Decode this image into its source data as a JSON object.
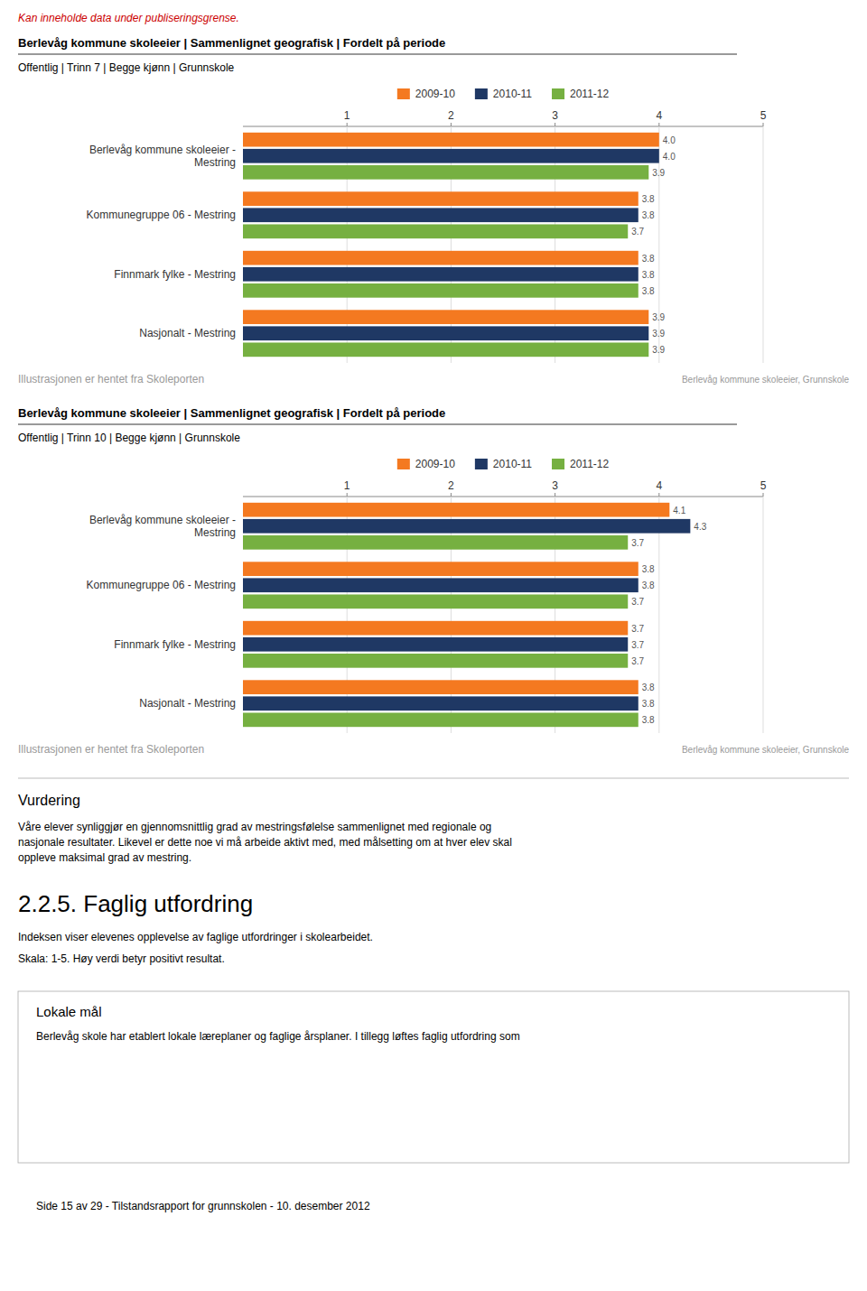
{
  "chart_data": [
    {
      "type": "bar",
      "orientation": "horizontal",
      "title": "Berlevåg kommune skoleeier | Sammenlignet geografisk | Fordelt på periode",
      "subtitle": "Offentlig | Trinn 7 | Begge kjønn | Grunnskole",
      "categories": [
        "Berlevåg kommune skoleeier -\nMestring",
        "Kommunegruppe 06 - Mestring",
        "Finnmark fylke - Mestring",
        "Nasjonalt - Mestring"
      ],
      "series": [
        {
          "name": "2009-10",
          "color": "#F47920",
          "values": [
            4.0,
            3.8,
            3.8,
            3.9
          ],
          "value_labels": [
            "4.0",
            "3.8",
            "3.8",
            "3.9"
          ]
        },
        {
          "name": "2010-11",
          "color": "#1F3864",
          "values": [
            4.0,
            3.8,
            3.8,
            3.9
          ],
          "value_labels": [
            "4.0",
            "3.8",
            "3.8",
            "3.9"
          ]
        },
        {
          "name": "2011-12",
          "color": "#76B041",
          "values": [
            3.9,
            3.7,
            3.8,
            3.9
          ],
          "value_labels": [
            "3.9",
            "3.7",
            "3.8",
            "3.9"
          ]
        }
      ],
      "xlim": [
        0,
        5
      ],
      "xticks": [
        1,
        2,
        3,
        4,
        5
      ],
      "grid": true,
      "data_labels": true,
      "legend": "top",
      "annotations": [
        "Berlevåg kommune skoleeier, Grunnskole",
        "Illustrasjonen er hentet fra Skoleporten"
      ]
    },
    {
      "type": "bar",
      "orientation": "horizontal",
      "title": "Berlevåg kommune skoleeier | Sammenlignet geografisk | Fordelt på periode",
      "subtitle": "Offentlig | Trinn 10 | Begge kjønn | Grunnskole",
      "categories": [
        "Berlevåg kommune skoleeier -\nMestring",
        "Kommunegruppe 06 - Mestring",
        "Finnmark fylke - Mestring",
        "Nasjonalt - Mestring"
      ],
      "series": [
        {
          "name": "2009-10",
          "color": "#F47920",
          "values": [
            4.1,
            3.8,
            3.7,
            3.8
          ],
          "value_labels": [
            "4.1",
            "3.8",
            "3.7",
            "3.8"
          ]
        },
        {
          "name": "2010-11",
          "color": "#1F3864",
          "values": [
            4.3,
            3.8,
            3.7,
            3.8
          ],
          "value_labels": [
            "4.3",
            "3.8",
            "3.7",
            "3.8"
          ]
        },
        {
          "name": "2011-12",
          "color": "#76B041",
          "values": [
            3.7,
            3.7,
            3.7,
            3.8
          ],
          "value_labels": [
            "3.7",
            "3.7",
            "3.7",
            "3.8"
          ]
        }
      ],
      "xlim": [
        0,
        5
      ],
      "xticks": [
        1,
        2,
        3,
        4,
        5
      ],
      "grid": true,
      "data_labels": true,
      "legend": "top",
      "annotations": [
        "Berlevåg kommune skoleeier, Grunnskole",
        "Illustrasjonen er hentet fra Skoleporten"
      ]
    }
  ],
  "annotations": [
    {
      "text": "Kan inneholde data under publiseringsgrense.",
      "color": "#CC0000"
    },
    {
      "text": "Vurdering"
    },
    {
      "text": "Våre elever synliggjør en gjennomsnittlig grad av mestringsfølelse sammenlignet med regionale og\nnasjonale resultater. Likevel er dette noe vi må arbeide aktivt med, med målsetting om at hver elev skal\noppleve maksimal grad av mestring."
    },
    {
      "text": "2.2.5.  Faglig utfordring"
    },
    {
      "text": "Indeksen viser elevenes opplevelse av faglige utfordringer i skolearbeidet."
    },
    {
      "text": "Skala: 1-5. Høy verdi betyr positivt resultat."
    },
    {
      "text": "Lokale mål"
    },
    {
      "text": "Berlevåg skole har etablert lokale læreplaner og faglige årsplaner. I tillegg løftes faglig utfordring som"
    },
    {
      "text": "Side 15 av 29 - Tilstandsrapport for grunnskolen - 10. desember 2012"
    }
  ]
}
